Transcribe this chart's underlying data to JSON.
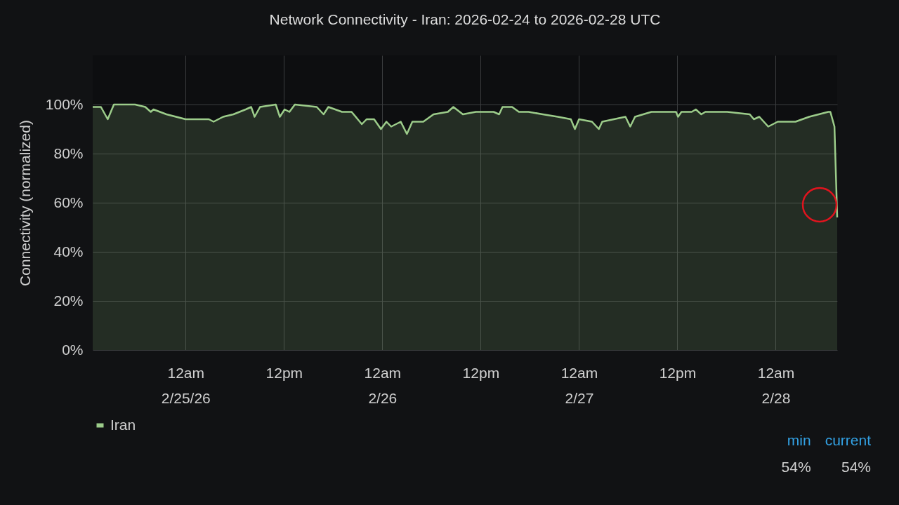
{
  "chart_data": {
    "type": "area",
    "title": "Network Connectivity - Iran: 2026-02-24 to 2026-02-28 UTC",
    "ylabel": "Connectivity (normalized)",
    "x": [
      "2026-02-24T12:40",
      "2026-02-24T13:40",
      "2026-02-24T14:30",
      "2026-02-24T15:15",
      "2026-02-24T17:50",
      "2026-02-24T19:05",
      "2026-02-24T19:45",
      "2026-02-24T20:05",
      "2026-02-24T21:40",
      "2026-02-25T00:00",
      "2026-02-25T00:50",
      "2026-02-25T02:50",
      "2026-02-25T03:25",
      "2026-02-25T04:35",
      "2026-02-25T05:50",
      "2026-02-25T07:20",
      "2026-02-25T08:00",
      "2026-02-25T08:25",
      "2026-02-25T09:05",
      "2026-02-25T11:00",
      "2026-02-25T11:30",
      "2026-02-25T12:05",
      "2026-02-25T12:40",
      "2026-02-25T13:20",
      "2026-02-25T16:00",
      "2026-02-25T16:50",
      "2026-02-25T17:25",
      "2026-02-25T18:15",
      "2026-02-25T19:05",
      "2026-02-25T20:15",
      "2026-02-25T21:30",
      "2026-02-25T22:05",
      "2026-02-25T23:00",
      "2026-02-25T23:50",
      "2026-02-26T00:30",
      "2026-02-26T01:05",
      "2026-02-26T02:15",
      "2026-02-26T03:00",
      "2026-02-26T03:40",
      "2026-02-26T05:00",
      "2026-02-26T06:15",
      "2026-02-26T08:00",
      "2026-02-26T08:40",
      "2026-02-26T09:50",
      "2026-02-26T11:25",
      "2026-02-26T13:35",
      "2026-02-26T14:15",
      "2026-02-26T14:40",
      "2026-02-26T15:50",
      "2026-02-26T16:40",
      "2026-02-26T17:10",
      "2026-02-26T17:50",
      "2026-02-26T19:35",
      "2026-02-26T21:25",
      "2026-02-26T23:00",
      "2026-02-26T23:30",
      "2026-02-27T00:00",
      "2026-02-27T01:35",
      "2026-02-27T02:25",
      "2026-02-27T02:50",
      "2026-02-27T05:40",
      "2026-02-27T06:15",
      "2026-02-27T06:50",
      "2026-02-27T08:50",
      "2026-02-27T11:50",
      "2026-02-27T12:05",
      "2026-02-27T12:30",
      "2026-02-27T13:45",
      "2026-02-27T14:15",
      "2026-02-27T14:55",
      "2026-02-27T15:25",
      "2026-02-27T18:05",
      "2026-02-27T20:50",
      "2026-02-27T21:20",
      "2026-02-27T22:00",
      "2026-02-27T23:05",
      "2026-02-28T00:15",
      "2026-02-28T02:25",
      "2026-02-28T04:05",
      "2026-02-28T06:25",
      "2026-02-28T06:40",
      "2026-02-28T07:10",
      "2026-02-28T07:30"
    ],
    "series": [
      {
        "name": "Iran",
        "color": "#9ccc8a",
        "values": [
          99,
          99,
          94,
          100,
          100,
          99,
          97,
          98,
          96,
          94,
          94,
          94,
          93,
          95,
          96,
          98,
          99,
          95,
          99,
          100,
          95,
          98,
          97,
          100,
          99,
          96,
          99,
          98,
          97,
          97,
          92,
          94,
          94,
          90,
          93,
          91,
          93,
          88,
          93,
          93,
          96,
          97,
          99,
          96,
          97,
          97,
          96,
          99,
          99,
          97,
          97,
          97,
          96,
          95,
          94,
          90,
          94,
          93,
          90,
          93,
          95,
          91,
          95,
          97,
          97,
          95,
          97,
          97,
          98,
          96,
          97,
          97,
          96,
          94,
          95,
          91,
          93,
          93,
          95,
          97,
          97,
          91,
          54
        ]
      }
    ],
    "xlim": [
      "2026-02-24T12:40",
      "2026-02-28T07:30"
    ],
    "xticks": [
      {
        "value": "2026-02-25T00:00",
        "label": "12am\n2/25/26"
      },
      {
        "value": "2026-02-25T12:00",
        "label": "12pm"
      },
      {
        "value": "2026-02-26T00:00",
        "label": "12am\n2/26"
      },
      {
        "value": "2026-02-26T12:00",
        "label": "12pm"
      },
      {
        "value": "2026-02-27T00:00",
        "label": "12am\n2/27"
      },
      {
        "value": "2026-02-27T12:00",
        "label": "12pm"
      },
      {
        "value": "2026-02-28T00:00",
        "label": "12am\n2/28"
      }
    ],
    "ylim": [
      0,
      120
    ],
    "yticks": [
      {
        "value": 0,
        "label": "0%"
      },
      {
        "value": 20,
        "label": "20%"
      },
      {
        "value": 40,
        "label": "40%"
      },
      {
        "value": 60,
        "label": "60%"
      },
      {
        "value": 80,
        "label": "80%"
      },
      {
        "value": 100,
        "label": "100%"
      }
    ],
    "grid": true,
    "legend": "bottom",
    "annotations": [
      "min",
      "current",
      "54%",
      "54%"
    ]
  }
}
